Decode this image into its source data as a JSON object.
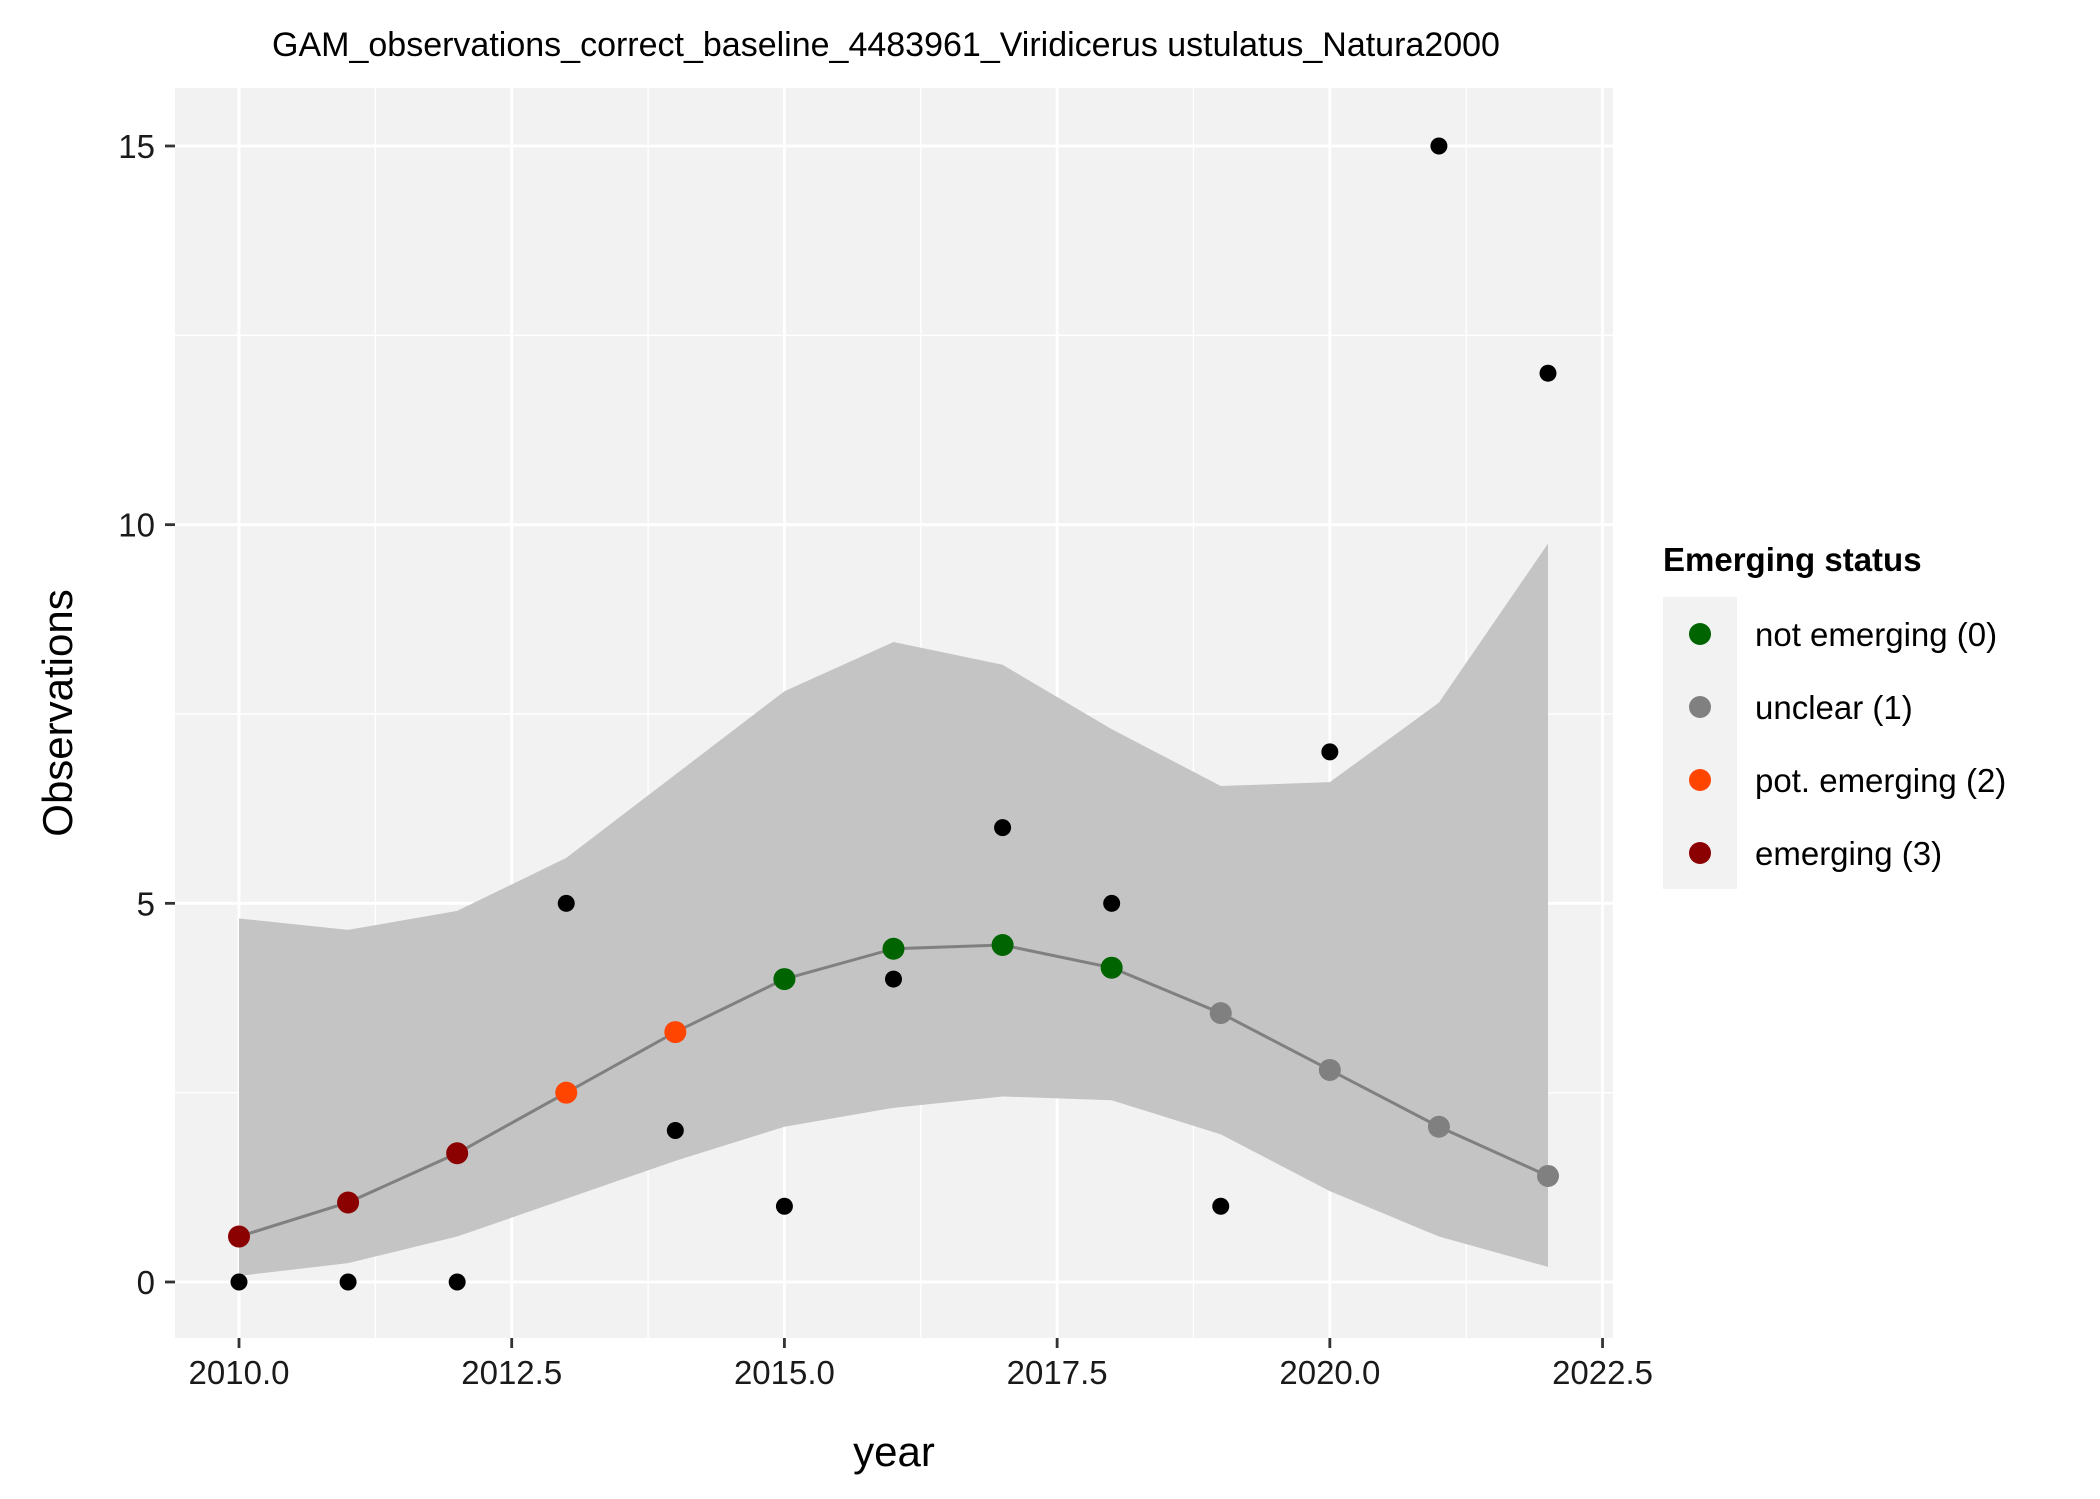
{
  "chart_data": {
    "type": "line",
    "title": "GAM_observations_correct_baseline_4483961_Viridicerus ustulatus_Natura2000",
    "xlabel": "year",
    "ylabel": "Observations",
    "xlim": [
      2009.4,
      2022.6
    ],
    "ylim": [
      -0.75,
      15.75
    ],
    "x_ticks": [
      2010.0,
      2012.5,
      2015.0,
      2017.5,
      2020.0,
      2022.5
    ],
    "x_tick_labels": [
      "2010.0",
      "2012.5",
      "2015.0",
      "2017.5",
      "2020.0",
      "2022.5"
    ],
    "y_ticks": [
      0,
      5,
      10,
      15
    ],
    "y_tick_labels": [
      "0",
      "5",
      "10",
      "15"
    ],
    "grid": true,
    "legend": {
      "title": "Emerging status",
      "position": "right",
      "entries": [
        {
          "label": "not emerging (0)",
          "color": "#006400"
        },
        {
          "label": "unclear (1)",
          "color": "#808080"
        },
        {
          "label": "pot. emerging (2)",
          "color": "#FF4500"
        },
        {
          "label": "emerging (3)",
          "color": "#8B0000"
        }
      ]
    },
    "observations": {
      "x": [
        2010,
        2011,
        2012,
        2013,
        2014,
        2015,
        2016,
        2017,
        2018,
        2019,
        2020,
        2021,
        2022
      ],
      "y": [
        0,
        0,
        0,
        5,
        2,
        1,
        4,
        6,
        5,
        1,
        7,
        15,
        12
      ],
      "color": "#000000"
    },
    "fit": {
      "x": [
        2010,
        2011,
        2012,
        2013,
        2014,
        2015,
        2016,
        2017,
        2018,
        2019,
        2020,
        2021,
        2022
      ],
      "y": [
        0.6,
        1.05,
        1.7,
        2.5,
        3.3,
        4.0,
        4.4,
        4.45,
        4.15,
        3.55,
        2.8,
        2.05,
        1.4
      ],
      "lower": [
        0.08,
        0.25,
        0.6,
        1.1,
        1.6,
        2.05,
        2.3,
        2.45,
        2.4,
        1.95,
        1.2,
        0.6,
        0.2
      ],
      "upper": [
        4.8,
        4.65,
        4.9,
        5.6,
        6.7,
        7.8,
        8.45,
        8.15,
        7.3,
        6.55,
        6.6,
        7.65,
        9.75
      ],
      "status": [
        3,
        3,
        3,
        2,
        2,
        0,
        0,
        0,
        0,
        1,
        1,
        1,
        1
      ],
      "line_color": "#808080",
      "ribbon_color": "#c4c4c4"
    },
    "status_colors": {
      "0": "#006400",
      "1": "#808080",
      "2": "#FF4500",
      "3": "#8B0000"
    }
  }
}
